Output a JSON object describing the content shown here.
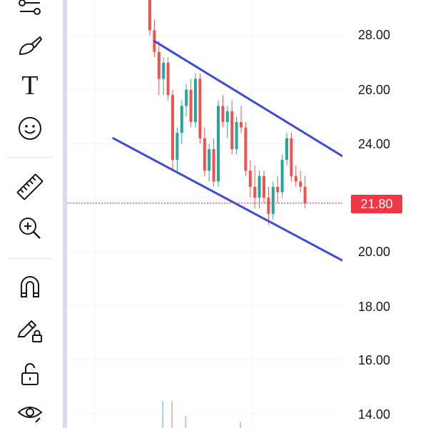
{
  "toolbar": {
    "tools": [
      {
        "name": "indicator-templates-tool",
        "icon": "sliders-icon"
      },
      {
        "name": "brush-tool",
        "icon": "brush-icon"
      },
      {
        "name": "text-tool",
        "icon": "text-icon"
      },
      {
        "name": "emoji-tool",
        "icon": "smiley-icon"
      },
      {
        "name": "measure-tool",
        "icon": "ruler-icon"
      },
      {
        "name": "zoom-in-tool",
        "icon": "zoom-in-icon"
      },
      {
        "name": "magnet-tool",
        "icon": "magnet-icon"
      },
      {
        "name": "lock-drawings-tool",
        "icon": "pencil-lock-icon"
      },
      {
        "name": "lock-all-tool",
        "icon": "unlock-icon"
      },
      {
        "name": "hide-tool",
        "icon": "eye-icon"
      }
    ],
    "text_tool_glyph": "T"
  },
  "price_axis": {
    "ticks": [
      "28.00",
      "26.00",
      "24.00",
      "20.00",
      "18.00",
      "16.00",
      "14.00"
    ],
    "current_price": "21.80",
    "current_price_color": "#f23645"
  },
  "chart_data": {
    "type": "candlestick",
    "price_range_visible": [
      13.5,
      29.5
    ],
    "last_price": 21.8,
    "up_color": "#26a69a",
    "down_color": "#ef5350",
    "channel_color": "#3c4bd8",
    "candles_approx": [
      [
        29.4,
        29.6,
        28.0,
        28.2
      ],
      [
        28.2,
        28.6,
        27.2,
        27.4
      ],
      [
        27.4,
        27.8,
        25.8,
        26.4
      ],
      [
        26.4,
        27.2,
        25.8,
        27.0
      ],
      [
        27.0,
        27.2,
        25.6,
        25.8
      ],
      [
        25.8,
        26.0,
        23.0,
        23.4
      ],
      [
        23.4,
        24.6,
        23.0,
        24.4
      ],
      [
        24.4,
        25.6,
        24.0,
        25.4
      ],
      [
        25.4,
        26.2,
        25.0,
        26.0
      ],
      [
        26.0,
        26.4,
        24.6,
        24.8
      ],
      [
        24.8,
        26.6,
        24.6,
        26.4
      ],
      [
        26.4,
        26.6,
        24.0,
        24.2
      ],
      [
        24.2,
        24.6,
        22.8,
        23.0
      ],
      [
        23.0,
        24.0,
        22.6,
        23.8
      ],
      [
        23.8,
        24.2,
        22.4,
        22.6
      ],
      [
        22.6,
        25.6,
        22.4,
        25.4
      ],
      [
        25.4,
        25.8,
        24.6,
        24.8
      ],
      [
        24.8,
        25.4,
        24.2,
        25.2
      ],
      [
        25.2,
        25.6,
        23.6,
        23.8
      ],
      [
        23.8,
        25.0,
        23.6,
        24.8
      ],
      [
        24.8,
        25.4,
        24.4,
        24.6
      ],
      [
        24.6,
        24.8,
        22.8,
        23.0
      ],
      [
        23.0,
        23.4,
        22.0,
        22.4
      ],
      [
        22.4,
        23.2,
        21.6,
        22.0
      ],
      [
        22.0,
        23.0,
        21.6,
        22.8
      ],
      [
        22.8,
        23.0,
        21.8,
        22.0
      ],
      [
        22.0,
        22.4,
        21.0,
        21.4
      ],
      [
        21.4,
        22.6,
        21.2,
        22.4
      ],
      [
        22.4,
        22.8,
        21.8,
        22.2
      ],
      [
        22.2,
        23.6,
        22.0,
        23.4
      ],
      [
        23.4,
        24.4,
        23.2,
        24.2
      ],
      [
        24.2,
        24.4,
        22.6,
        22.8
      ],
      [
        22.8,
        23.2,
        22.4,
        22.6
      ],
      [
        22.6,
        23.0,
        22.2,
        22.4
      ],
      [
        22.4,
        22.8,
        21.6,
        21.8
      ]
    ],
    "channel_lines": [
      {
        "from": [
          1,
          27.8
        ],
        "to": [
          59,
          21.8
        ]
      },
      {
        "from": [
          -8,
          24.2
        ],
        "to": [
          43,
          19.6
        ]
      }
    ],
    "volume_bars_approx": [
      {
        "index": 3,
        "value": 0.9,
        "dir": "up"
      },
      {
        "index": 5,
        "value": 0.9,
        "dir": "down"
      },
      {
        "index": 8,
        "value": 0.4,
        "dir": "down"
      },
      {
        "index": 20,
        "value": 0.2,
        "dir": "down"
      }
    ]
  }
}
